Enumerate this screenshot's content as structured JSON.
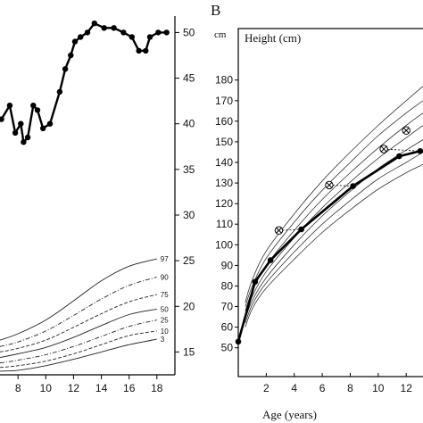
{
  "figure": {
    "panel_b_letter": "B"
  },
  "chart_data": [
    {
      "type": "line",
      "panel": "A",
      "x_ticks": [
        "8",
        "10",
        "12",
        "14",
        "16",
        "18"
      ],
      "y_ticks": [
        "15",
        "20",
        "25",
        "30",
        "35",
        "40",
        "45",
        "50"
      ],
      "xlim": [
        6.7,
        19.3
      ],
      "ylim": [
        12.5,
        51.8
      ],
      "grid": false,
      "series": [
        {
          "name": "",
          "marker": "dot",
          "points": [
            [
              6.8,
              40.5
            ],
            [
              7.4,
              42.0
            ],
            [
              7.8,
              39.0
            ],
            [
              8.2,
              40.0
            ],
            [
              8.4,
              38.0
            ],
            [
              8.7,
              38.5
            ],
            [
              9.1,
              42.0
            ],
            [
              9.4,
              41.5
            ],
            [
              9.8,
              39.5
            ],
            [
              10.3,
              40.0
            ],
            [
              11.0,
              43.5
            ],
            [
              11.4,
              46.0
            ],
            [
              11.8,
              47.5
            ],
            [
              12.1,
              49.0
            ],
            [
              12.5,
              49.5
            ],
            [
              13.0,
              50.0
            ],
            [
              13.5,
              51.0
            ],
            [
              14.2,
              50.5
            ],
            [
              14.9,
              50.5
            ],
            [
              15.6,
              50.0
            ],
            [
              16.2,
              49.5
            ],
            [
              16.7,
              48.0
            ],
            [
              17.2,
              48.0
            ],
            [
              17.5,
              49.5
            ],
            [
              18.1,
              50.0
            ],
            [
              18.7,
              50.0
            ]
          ]
        }
      ],
      "percentile_curves": [
        {
          "label": "97",
          "style": "solid",
          "points": [
            [
              6.7,
              16.3
            ],
            [
              8,
              17.0
            ],
            [
              10,
              18.5
            ],
            [
              12,
              20.6
            ],
            [
              14,
              22.8
            ],
            [
              16,
              24.4
            ],
            [
              18,
              25.2
            ]
          ]
        },
        {
          "label": "90",
          "style": "dashdot",
          "points": [
            [
              6.7,
              15.6
            ],
            [
              8,
              16.1
            ],
            [
              10,
              17.3
            ],
            [
              12,
              19.0
            ],
            [
              14,
              20.8
            ],
            [
              16,
              22.3
            ],
            [
              18,
              23.2
            ]
          ]
        },
        {
          "label": "75",
          "style": "dashed",
          "points": [
            [
              6.7,
              15.0
            ],
            [
              8,
              15.4
            ],
            [
              10,
              16.3
            ],
            [
              12,
              17.7
            ],
            [
              14,
              19.2
            ],
            [
              16,
              20.5
            ],
            [
              18,
              21.3
            ]
          ]
        },
        {
          "label": "50",
          "style": "solid",
          "points": [
            [
              6.7,
              14.4
            ],
            [
              8,
              14.8
            ],
            [
              10,
              15.5
            ],
            [
              12,
              16.6
            ],
            [
              14,
              17.9
            ],
            [
              16,
              19.1
            ],
            [
              18,
              19.7
            ]
          ]
        },
        {
          "label": "25",
          "style": "dashdot",
          "points": [
            [
              6.7,
              13.8
            ],
            [
              8,
              14.1
            ],
            [
              10,
              14.7
            ],
            [
              12,
              15.6
            ],
            [
              14,
              16.7
            ],
            [
              16,
              17.8
            ],
            [
              18,
              18.5
            ]
          ]
        },
        {
          "label": "10",
          "style": "dashed",
          "points": [
            [
              6.7,
              13.3
            ],
            [
              8,
              13.5
            ],
            [
              10,
              14.0
            ],
            [
              12,
              14.8
            ],
            [
              14,
              15.8
            ],
            [
              16,
              16.8
            ],
            [
              18,
              17.3
            ]
          ]
        },
        {
          "label": "3",
          "style": "solid",
          "points": [
            [
              6.7,
              12.9
            ],
            [
              8,
              13.0
            ],
            [
              10,
              13.5
            ],
            [
              12,
              14.2
            ],
            [
              14,
              15.0
            ],
            [
              16,
              15.8
            ],
            [
              18,
              16.4
            ]
          ]
        }
      ]
    },
    {
      "type": "line",
      "panel": "B",
      "unit_label": "cm",
      "title": "Height (cm)",
      "xlabel": "Age (years)",
      "x_ticks": [
        "2",
        "4",
        "6",
        "8",
        "10",
        "12"
      ],
      "y_ticks": [
        "50",
        "60",
        "70",
        "80",
        "90",
        "100",
        "110",
        "120",
        "130",
        "140",
        "150",
        "160",
        "170",
        "180"
      ],
      "xlim": [
        0,
        13.2
      ],
      "ylim": [
        36,
        205
      ],
      "grid": false,
      "series": [
        {
          "name": "",
          "marker": "dot",
          "points": [
            [
              0,
              53
            ],
            [
              1.2,
              82
            ],
            [
              2.3,
              92.5
            ],
            [
              4.5,
              107.5
            ],
            [
              8.2,
              128.5
            ],
            [
              11.5,
              143
            ],
            [
              13,
              145.5
            ]
          ]
        },
        {
          "name": "",
          "marker": "circled-x",
          "points": [
            [
              2.9,
              107
            ],
            [
              6.5,
              129
            ],
            [
              10.4,
              146.5
            ],
            [
              12.0,
              155.5
            ]
          ]
        }
      ],
      "reference_curves": [
        {
          "points": [
            [
              0.5,
              72
            ],
            [
              1,
              83
            ],
            [
              2,
              97
            ],
            [
              4,
              115
            ],
            [
              6,
              131
            ],
            [
              8,
              145
            ],
            [
              10,
              158
            ],
            [
              12,
              170
            ],
            [
              13.2,
              177
            ]
          ]
        },
        {
          "points": [
            [
              0.5,
              70
            ],
            [
              1,
              80
            ],
            [
              2,
              93.5
            ],
            [
              4,
              111
            ],
            [
              6,
              126.5
            ],
            [
              8,
              140
            ],
            [
              10,
              153
            ],
            [
              12,
              164
            ],
            [
              13.2,
              170
            ]
          ]
        },
        {
          "points": [
            [
              0.5,
              68
            ],
            [
              1,
              77.5
            ],
            [
              2,
              90
            ],
            [
              4,
              107
            ],
            [
              6,
              122
            ],
            [
              8,
              135
            ],
            [
              10,
              147
            ],
            [
              12,
              158
            ],
            [
              13.2,
              164
            ]
          ]
        },
        {
          "points": [
            [
              0.5,
              66
            ],
            [
              1,
              75
            ],
            [
              2,
              87
            ],
            [
              4,
              103.5
            ],
            [
              6,
              118
            ],
            [
              8,
              130.5
            ],
            [
              10,
              142
            ],
            [
              12,
              152
            ],
            [
              13.2,
              158
            ]
          ]
        },
        {
          "points": [
            [
              0.5,
              64
            ],
            [
              1,
              73
            ],
            [
              2,
              84
            ],
            [
              4,
              100
            ],
            [
              6,
              114
            ],
            [
              8,
              126
            ],
            [
              10,
              137
            ],
            [
              12,
              146
            ],
            [
              13.2,
              151
            ]
          ]
        },
        {
          "points": [
            [
              0.5,
              62
            ],
            [
              1,
              71
            ],
            [
              2,
              81.5
            ],
            [
              4,
              96.5
            ],
            [
              6,
              110
            ],
            [
              8,
              121.5
            ],
            [
              10,
              132
            ],
            [
              12,
              140
            ],
            [
              13.2,
              145
            ]
          ]
        },
        {
          "points": [
            [
              0.5,
              60
            ],
            [
              1,
              69
            ],
            [
              2,
              79
            ],
            [
              4,
              93
            ],
            [
              6,
              106
            ],
            [
              8,
              117
            ],
            [
              10,
              127
            ],
            [
              12,
              135
            ],
            [
              13.2,
              139
            ]
          ]
        }
      ]
    }
  ]
}
